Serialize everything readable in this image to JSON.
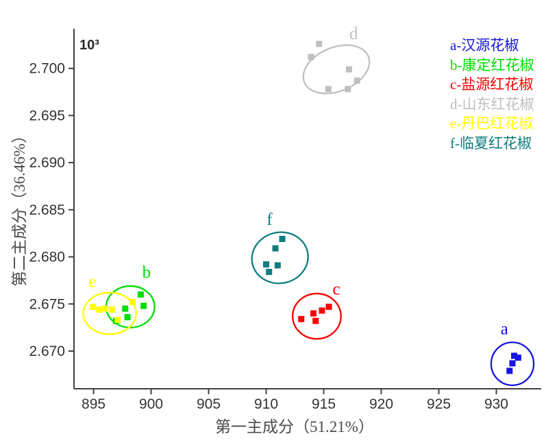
{
  "chart_data": {
    "type": "scatter",
    "title": "",
    "xlabel": "第一主成分（51.21%）",
    "ylabel": "第二主成分（36.46%）",
    "y_unit_multiplier": "10³",
    "xlim": [
      893.3,
      933.9
    ],
    "ylim": [
      2.666,
      2.7042
    ],
    "xtick_values": [
      895,
      900,
      905,
      910,
      915,
      920,
      925,
      930
    ],
    "xtick_labels": [
      "895",
      "900",
      "905",
      "910",
      "915",
      "920",
      "925",
      "930"
    ],
    "ytick_values": [
      2.67,
      2.675,
      2.68,
      2.685,
      2.69,
      2.695,
      2.7
    ],
    "ytick_labels": [
      "2.670",
      "2.675",
      "2.680",
      "2.685",
      "2.690",
      "2.695",
      "2.700"
    ],
    "grid": false,
    "legend_position": "top-right",
    "axis_color": "#404040",
    "tick_text_color": "#333333",
    "marker_shape": "square",
    "series": [
      {
        "letter": "a",
        "legend_label": "a-汉源花椒",
        "color": "#1414e0",
        "points": [
          [
            931.55,
            2.6695
          ],
          [
            931.9,
            2.6693
          ],
          [
            931.4,
            2.6687
          ],
          [
            931.15,
            2.6679
          ]
        ],
        "ellipse": {
          "cx": 931.4,
          "cy": 2.66865,
          "rx": 1.85,
          "ry": 0.00228,
          "rot": 0
        },
        "letter_pos": [
          930.7,
          2.6718
        ]
      },
      {
        "letter": "b",
        "legend_label": "b-康定红花椒",
        "color": "#00dd00",
        "points": [
          [
            899.1,
            2.676
          ],
          [
            899.35,
            2.6748
          ],
          [
            897.75,
            2.6745
          ],
          [
            897.95,
            2.6736
          ],
          [
            896.95,
            2.6732
          ]
        ],
        "ellipse": {
          "cx": 898.2,
          "cy": 2.6747,
          "rx": 2.1,
          "ry": 0.0022,
          "rot": 0
        },
        "letter_pos": [
          899.6,
          2.6778
        ]
      },
      {
        "letter": "c",
        "legend_label": "c-盐源红花椒",
        "color": "#fa0000",
        "points": [
          [
            914.1,
            2.674
          ],
          [
            914.85,
            2.6743
          ],
          [
            915.45,
            2.6747
          ],
          [
            913.05,
            2.6734
          ],
          [
            914.3,
            2.6732
          ]
        ],
        "ellipse": {
          "cx": 914.4,
          "cy": 2.6737,
          "rx": 2.1,
          "ry": 0.0024,
          "rot": 0
        },
        "letter_pos": [
          916.1,
          2.676
        ]
      },
      {
        "letter": "d",
        "legend_label": "d-山东红花椒",
        "color": "#bfbfbf",
        "points": [
          [
            914.6,
            2.7026
          ],
          [
            913.9,
            2.7012
          ],
          [
            917.2,
            2.6999
          ],
          [
            917.9,
            2.6987
          ],
          [
            917.1,
            2.6978
          ],
          [
            915.4,
            2.6978
          ]
        ],
        "ellipse": {
          "cx": 916.1,
          "cy": 2.6999,
          "rx": 3.0,
          "ry": 0.00233,
          "rot": -22
        },
        "letter_pos": [
          917.6,
          2.7031
        ]
      },
      {
        "letter": "e",
        "legend_label": "e-丹巴红花椒",
        "color": "#ffff00",
        "points": [
          [
            894.95,
            2.6747
          ],
          [
            895.5,
            2.6744
          ],
          [
            896.0,
            2.6745
          ],
          [
            896.6,
            2.6744
          ],
          [
            898.4,
            2.6752
          ],
          [
            897.1,
            2.6733
          ]
        ],
        "ellipse": {
          "cx": 896.4,
          "cy": 2.674,
          "rx": 2.3,
          "ry": 0.0022,
          "rot": 0
        },
        "letter_pos": [
          894.9,
          2.6768
        ]
      },
      {
        "letter": "f",
        "legend_label": "f-临夏红花椒",
        "color": "#0e7d7d",
        "points": [
          [
            911.4,
            2.6819
          ],
          [
            910.8,
            2.6809
          ],
          [
            910.0,
            2.6792
          ],
          [
            911.0,
            2.6791
          ],
          [
            910.25,
            2.6784
          ]
        ],
        "ellipse": {
          "cx": 911.2,
          "cy": 2.6799,
          "rx": 2.45,
          "ry": 0.0027,
          "rot": -12
        },
        "letter_pos": [
          910.3,
          2.6834
        ]
      }
    ]
  }
}
